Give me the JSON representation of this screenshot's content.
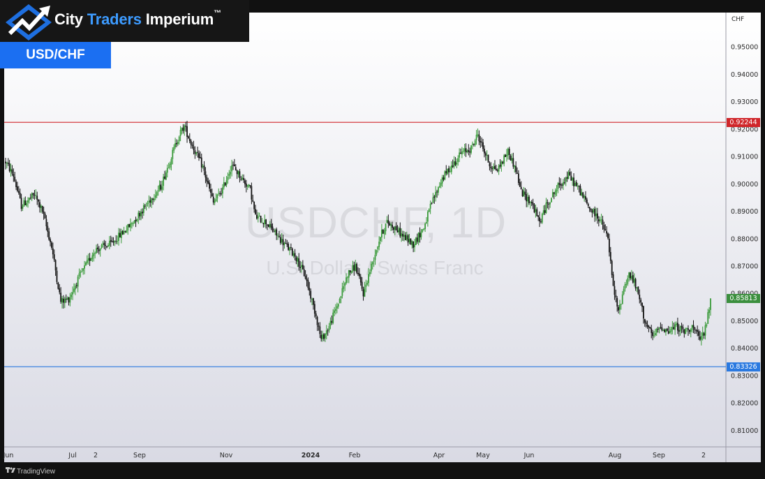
{
  "header": {
    "brand_part1": "City ",
    "brand_part2": "Traders",
    "brand_part3": " Imperium",
    "brand_tm": "™",
    "symbol_badge": "USD/CHF"
  },
  "watermark": {
    "ticker": "USDCHF, 1D",
    "description": "U.S. Dollar / Swiss Franc"
  },
  "footer": {
    "label": "TradingView"
  },
  "colors": {
    "up": "#3a9a3a",
    "down": "#131313",
    "resistance": "#d0262a",
    "support": "#2a79e0",
    "last_price": "#3b8f3e",
    "brand_accent": "#3d9bff",
    "badge": "#1b6ff2"
  },
  "chart_data": {
    "type": "candlestick",
    "symbol": "USDCHF",
    "interval": "1D",
    "y_unit": "CHF",
    "ylim": [
      0.804,
      0.9625
    ],
    "y_ticks": [
      "0.81000",
      "0.82000",
      "0.83000",
      "0.84000",
      "0.85000",
      "0.86000",
      "0.87000",
      "0.88000",
      "0.89000",
      "0.90000",
      "0.91000",
      "0.92000",
      "0.93000",
      "0.94000",
      "0.95000"
    ],
    "x_ticks": [
      {
        "label": "Jun",
        "bold": false
      },
      {
        "label": "Jul",
        "bold": false
      },
      {
        "label": "2",
        "bold": false
      },
      {
        "label": "Sep",
        "bold": false
      },
      {
        "label": "Nov",
        "bold": false
      },
      {
        "label": "2024",
        "bold": true
      },
      {
        "label": "Feb",
        "bold": false
      },
      {
        "label": "Apr",
        "bold": false
      },
      {
        "label": "May",
        "bold": false
      },
      {
        "label": "Jun",
        "bold": false
      },
      {
        "label": "Aug",
        "bold": false
      },
      {
        "label": "Sep",
        "bold": false
      },
      {
        "label": "2",
        "bold": false
      }
    ],
    "horizontal_levels": [
      {
        "name": "resistance",
        "value": 0.92244,
        "label": "0.92244"
      },
      {
        "name": "support",
        "value": 0.83326,
        "label": "0.83326"
      }
    ],
    "last_price": {
      "value": 0.85813,
      "label": "0.85813"
    },
    "grid": false,
    "path_anchors": [
      [
        0,
        0.908
      ],
      [
        6,
        0.903
      ],
      [
        12,
        0.892
      ],
      [
        22,
        0.896
      ],
      [
        28,
        0.89
      ],
      [
        35,
        0.877
      ],
      [
        42,
        0.857
      ],
      [
        48,
        0.858
      ],
      [
        56,
        0.866
      ],
      [
        68,
        0.876
      ],
      [
        80,
        0.878
      ],
      [
        95,
        0.885
      ],
      [
        108,
        0.893
      ],
      [
        118,
        0.899
      ],
      [
        126,
        0.91
      ],
      [
        132,
        0.918
      ],
      [
        136,
        0.921
      ],
      [
        140,
        0.916
      ],
      [
        150,
        0.906
      ],
      [
        158,
        0.893
      ],
      [
        165,
        0.898
      ],
      [
        172,
        0.907
      ],
      [
        178,
        0.903
      ],
      [
        186,
        0.898
      ],
      [
        190,
        0.888
      ],
      [
        198,
        0.886
      ],
      [
        205,
        0.882
      ],
      [
        212,
        0.878
      ],
      [
        220,
        0.874
      ],
      [
        228,
        0.866
      ],
      [
        236,
        0.852
      ],
      [
        240,
        0.843
      ],
      [
        246,
        0.848
      ],
      [
        254,
        0.858
      ],
      [
        260,
        0.867
      ],
      [
        266,
        0.87
      ],
      [
        272,
        0.86
      ],
      [
        278,
        0.87
      ],
      [
        285,
        0.881
      ],
      [
        290,
        0.886
      ],
      [
        296,
        0.884
      ],
      [
        302,
        0.881
      ],
      [
        310,
        0.878
      ],
      [
        318,
        0.884
      ],
      [
        324,
        0.893
      ],
      [
        332,
        0.902
      ],
      [
        340,
        0.907
      ],
      [
        346,
        0.911
      ],
      [
        354,
        0.913
      ],
      [
        359,
        0.918
      ],
      [
        363,
        0.913
      ],
      [
        368,
        0.907
      ],
      [
        374,
        0.905
      ],
      [
        382,
        0.912
      ],
      [
        388,
        0.905
      ],
      [
        392,
        0.897
      ],
      [
        400,
        0.893
      ],
      [
        406,
        0.886
      ],
      [
        412,
        0.893
      ],
      [
        420,
        0.899
      ],
      [
        428,
        0.903
      ],
      [
        436,
        0.898
      ],
      [
        444,
        0.891
      ],
      [
        452,
        0.887
      ],
      [
        458,
        0.88
      ],
      [
        462,
        0.862
      ],
      [
        466,
        0.853
      ],
      [
        470,
        0.862
      ],
      [
        474,
        0.867
      ],
      [
        478,
        0.864
      ],
      [
        482,
        0.858
      ],
      [
        486,
        0.85
      ],
      [
        492,
        0.844
      ],
      [
        498,
        0.848
      ],
      [
        504,
        0.846
      ],
      [
        510,
        0.848
      ],
      [
        516,
        0.846
      ],
      [
        522,
        0.848
      ],
      [
        528,
        0.843
      ],
      [
        532,
        0.847
      ],
      [
        536,
        0.857
      ]
    ]
  }
}
